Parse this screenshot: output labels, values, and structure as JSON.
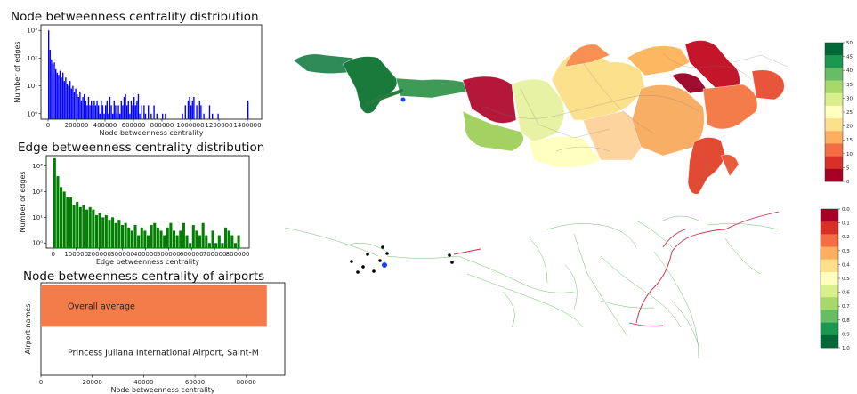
{
  "chart_data": [
    {
      "type": "bar",
      "title": "Node betweenness centrality distribution",
      "xlabel": "Node betweenness centrality",
      "ylabel": "Number of edges",
      "color": "#0000ff",
      "xlim": [
        -50000,
        1500000
      ],
      "yscale": "log",
      "ylim_exp": [
        -0.2,
        3.2
      ],
      "xticks": [
        0,
        200000,
        400000,
        600000,
        800000,
        1000000,
        1200000,
        1400000
      ],
      "xtick_labels": [
        "0",
        "200000",
        "400000",
        "600000",
        "800000",
        "1000000",
        "1200000",
        "1400000"
      ],
      "ytick_labels": [
        "10⁰",
        "10¹",
        "10²",
        "10³"
      ],
      "bin_width": 10000,
      "bins": [
        [
          0,
          1000
        ],
        [
          10000,
          200
        ],
        [
          20000,
          90
        ],
        [
          30000,
          60
        ],
        [
          40000,
          70
        ],
        [
          50000,
          40
        ],
        [
          60000,
          30
        ],
        [
          70000,
          25
        ],
        [
          80000,
          35
        ],
        [
          90000,
          20
        ],
        [
          100000,
          30
        ],
        [
          110000,
          15
        ],
        [
          120000,
          20
        ],
        [
          130000,
          12
        ],
        [
          140000,
          10
        ],
        [
          150000,
          15
        ],
        [
          160000,
          8
        ],
        [
          170000,
          10
        ],
        [
          180000,
          6
        ],
        [
          190000,
          8
        ],
        [
          200000,
          5
        ],
        [
          210000,
          4
        ],
        [
          220000,
          6
        ],
        [
          230000,
          3
        ],
        [
          240000,
          4
        ],
        [
          250000,
          5
        ],
        [
          260000,
          3
        ],
        [
          270000,
          2
        ],
        [
          280000,
          4
        ],
        [
          290000,
          2
        ],
        [
          300000,
          3
        ],
        [
          310000,
          2
        ],
        [
          320000,
          3
        ],
        [
          330000,
          2
        ],
        [
          340000,
          3
        ],
        [
          350000,
          2
        ],
        [
          360000,
          1
        ],
        [
          370000,
          3
        ],
        [
          380000,
          2
        ],
        [
          390000,
          1
        ],
        [
          400000,
          2
        ],
        [
          410000,
          3
        ],
        [
          420000,
          1
        ],
        [
          430000,
          4
        ],
        [
          440000,
          2
        ],
        [
          450000,
          1
        ],
        [
          460000,
          3
        ],
        [
          470000,
          2
        ],
        [
          480000,
          1
        ],
        [
          490000,
          2
        ],
        [
          500000,
          1
        ],
        [
          510000,
          3
        ],
        [
          520000,
          2
        ],
        [
          530000,
          4
        ],
        [
          540000,
          5
        ],
        [
          550000,
          2
        ],
        [
          560000,
          3
        ],
        [
          570000,
          1
        ],
        [
          580000,
          3
        ],
        [
          590000,
          2
        ],
        [
          600000,
          4
        ],
        [
          610000,
          2
        ],
        [
          620000,
          3
        ],
        [
          630000,
          5
        ],
        [
          640000,
          1
        ],
        [
          650000,
          2
        ],
        [
          670000,
          2
        ],
        [
          680000,
          1
        ],
        [
          700000,
          2
        ],
        [
          720000,
          1
        ],
        [
          740000,
          2
        ],
        [
          760000,
          1
        ],
        [
          800000,
          1
        ],
        [
          820000,
          1
        ],
        [
          940000,
          1
        ],
        [
          960000,
          2
        ],
        [
          980000,
          3
        ],
        [
          990000,
          4
        ],
        [
          1000000,
          2
        ],
        [
          1010000,
          3
        ],
        [
          1020000,
          4
        ],
        [
          1040000,
          2
        ],
        [
          1060000,
          3
        ],
        [
          1070000,
          2
        ],
        [
          1090000,
          1
        ],
        [
          1130000,
          2
        ],
        [
          1150000,
          1
        ],
        [
          1190000,
          1
        ],
        [
          1400000,
          3
        ]
      ]
    },
    {
      "type": "bar",
      "title": "Edge betweenness centrality distribution",
      "xlabel": "Edge betweenness centrality",
      "ylabel": "Number of edges",
      "color": "#008000",
      "xlim": [
        -30000,
        850000
      ],
      "yscale": "log",
      "ylim_exp": [
        -0.2,
        3.4
      ],
      "xticks": [
        0,
        100000,
        200000,
        300000,
        400000,
        500000,
        600000,
        700000,
        800000
      ],
      "xtick_labels": [
        "0",
        "100000",
        "200000",
        "300000",
        "400000",
        "500000",
        "600000",
        "700000",
        "800000"
      ],
      "ytick_labels": [
        "10⁰",
        "10¹",
        "10²",
        "10³"
      ],
      "bin_width": 14000,
      "bins": [
        [
          0,
          2000
        ],
        [
          14000,
          400
        ],
        [
          28000,
          150
        ],
        [
          42000,
          100
        ],
        [
          56000,
          60
        ],
        [
          70000,
          60
        ],
        [
          84000,
          30
        ],
        [
          98000,
          40
        ],
        [
          112000,
          25
        ],
        [
          126000,
          30
        ],
        [
          140000,
          20
        ],
        [
          154000,
          25
        ],
        [
          168000,
          20
        ],
        [
          182000,
          12
        ],
        [
          196000,
          15
        ],
        [
          210000,
          10
        ],
        [
          224000,
          12
        ],
        [
          238000,
          8
        ],
        [
          252000,
          10
        ],
        [
          266000,
          6
        ],
        [
          280000,
          8
        ],
        [
          294000,
          5
        ],
        [
          308000,
          6
        ],
        [
          322000,
          4
        ],
        [
          336000,
          3
        ],
        [
          350000,
          5
        ],
        [
          364000,
          2
        ],
        [
          378000,
          4
        ],
        [
          392000,
          3
        ],
        [
          406000,
          2
        ],
        [
          420000,
          5
        ],
        [
          434000,
          6
        ],
        [
          448000,
          4
        ],
        [
          462000,
          3
        ],
        [
          476000,
          2
        ],
        [
          490000,
          4
        ],
        [
          504000,
          6
        ],
        [
          518000,
          3
        ],
        [
          532000,
          2
        ],
        [
          546000,
          3
        ],
        [
          560000,
          6
        ],
        [
          574000,
          2
        ],
        [
          588000,
          1
        ],
        [
          602000,
          5
        ],
        [
          616000,
          3
        ],
        [
          630000,
          2
        ],
        [
          644000,
          6
        ],
        [
          658000,
          2
        ],
        [
          672000,
          1
        ],
        [
          686000,
          3
        ],
        [
          700000,
          1
        ],
        [
          714000,
          2
        ],
        [
          728000,
          1
        ],
        [
          742000,
          4
        ],
        [
          756000,
          3
        ],
        [
          770000,
          2
        ],
        [
          784000,
          1
        ],
        [
          798000,
          2
        ]
      ]
    },
    {
      "type": "bar",
      "orientation": "horizontal",
      "title": "Node betweenness centrality of airports",
      "xlabel": "Node betweenness centrality",
      "ylabel": "Airport names",
      "xlim": [
        0,
        95000
      ],
      "xticks": [
        0,
        20000,
        40000,
        60000,
        80000
      ],
      "xtick_labels": [
        "0",
        "20000",
        "40000",
        "60000",
        "80000"
      ],
      "categories": [
        "Overall average",
        "Princess Juliana International Airport, Saint-M"
      ],
      "values": [
        88000,
        0
      ],
      "color": "#f47c4b"
    },
    {
      "type": "map",
      "colorbar_colors": [
        "#a50026",
        "#d73027",
        "#f46d43",
        "#fdae61",
        "#fee08b",
        "#ffffbf",
        "#d9ef8b",
        "#a6d96a",
        "#66bd63",
        "#1a9850",
        "#006837"
      ],
      "colorbar_ticks": [
        "0",
        "5",
        "10",
        "15",
        "20",
        "25",
        "30",
        "35",
        "40",
        "45",
        "50"
      ]
    },
    {
      "type": "map",
      "colorbar_colors": [
        "#006837",
        "#1a9850",
        "#66bd63",
        "#a6d96a",
        "#d9ef8b",
        "#ffffbf",
        "#fee08b",
        "#fdae61",
        "#f46d43",
        "#d73027",
        "#a50026"
      ],
      "colorbar_ticks": [
        "1.0",
        "0.9",
        "0.8",
        "0.7",
        "0.6",
        "0.5",
        "0.4",
        "0.3",
        "0.2",
        "0.1",
        "0.0"
      ]
    }
  ]
}
